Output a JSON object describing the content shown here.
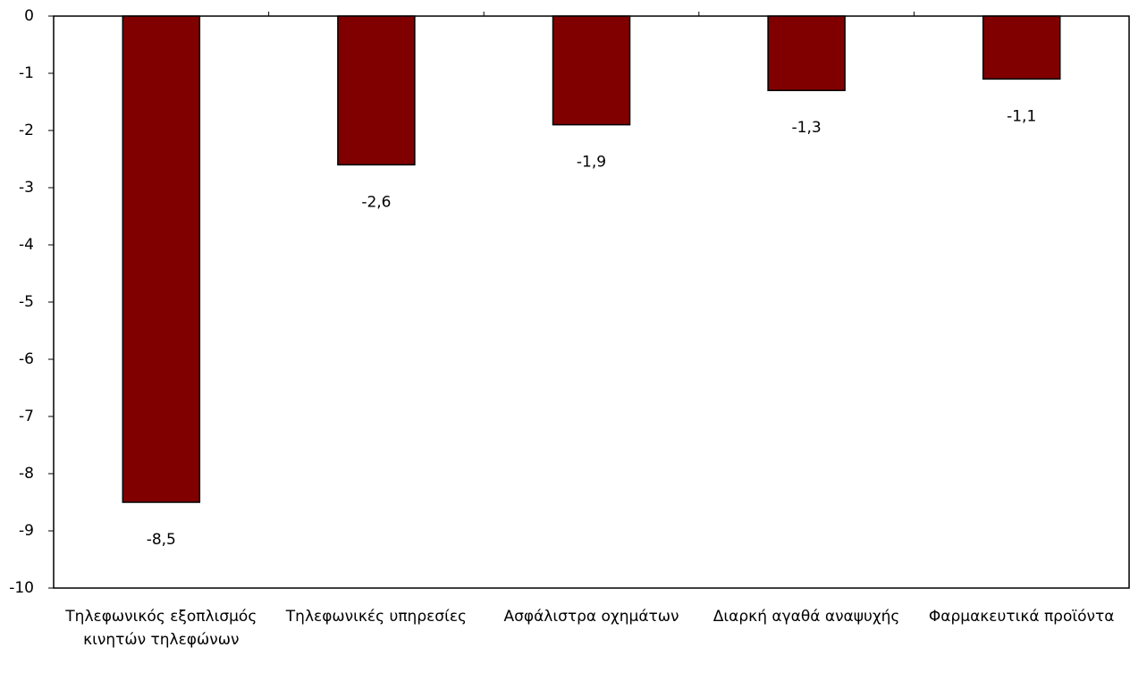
{
  "chart_data": {
    "type": "bar",
    "categories": [
      "Τηλεφωνικός εξοπλισμός κινητών τηλεφώνων",
      "Τηλεφωνικές υπηρεσίες",
      "Ασφάλιστρα οχημάτων",
      "Διαρκή αγαθά αναψυχής",
      "Φαρμακευτικά προϊόντα"
    ],
    "values": [
      -8.5,
      -2.6,
      -1.9,
      -1.3,
      -1.1
    ],
    "value_labels": [
      "-8,5",
      "-2,6",
      "-1,9",
      "-1,3",
      "-1,1"
    ],
    "color": "#800000",
    "ylim": [
      -10,
      0
    ],
    "yticks": [
      0,
      -1,
      -2,
      -3,
      -4,
      -5,
      -6,
      -7,
      -8,
      -9,
      -10
    ]
  }
}
